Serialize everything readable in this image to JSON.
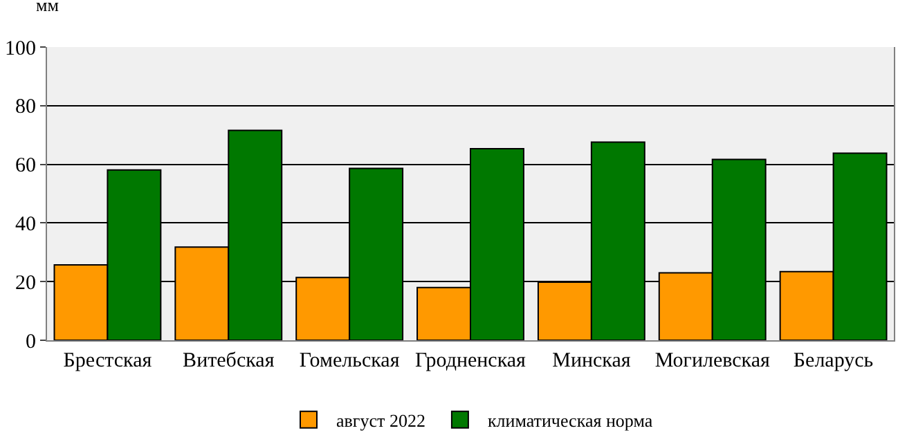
{
  "chart_data": {
    "type": "bar",
    "ylabel": "мм",
    "categories": [
      "Брестская",
      "Витебская",
      "Гомельская",
      "Гродненская",
      "Минская",
      "Могилевская",
      "Беларусь"
    ],
    "series": [
      {
        "name": "август 2022",
        "color": "#ff9900",
        "values": [
          25.7,
          31.8,
          21.4,
          18.0,
          19.8,
          23.0,
          23.4
        ]
      },
      {
        "name": "климатическая норма",
        "color": "#007800",
        "values": [
          58.1,
          71.6,
          58.6,
          65.3,
          67.6,
          61.7,
          63.8
        ]
      }
    ],
    "ylim": [
      0,
      100
    ],
    "yticks": [
      0,
      20,
      40,
      60,
      80,
      100
    ],
    "grid": "y",
    "legend": "bottom"
  }
}
